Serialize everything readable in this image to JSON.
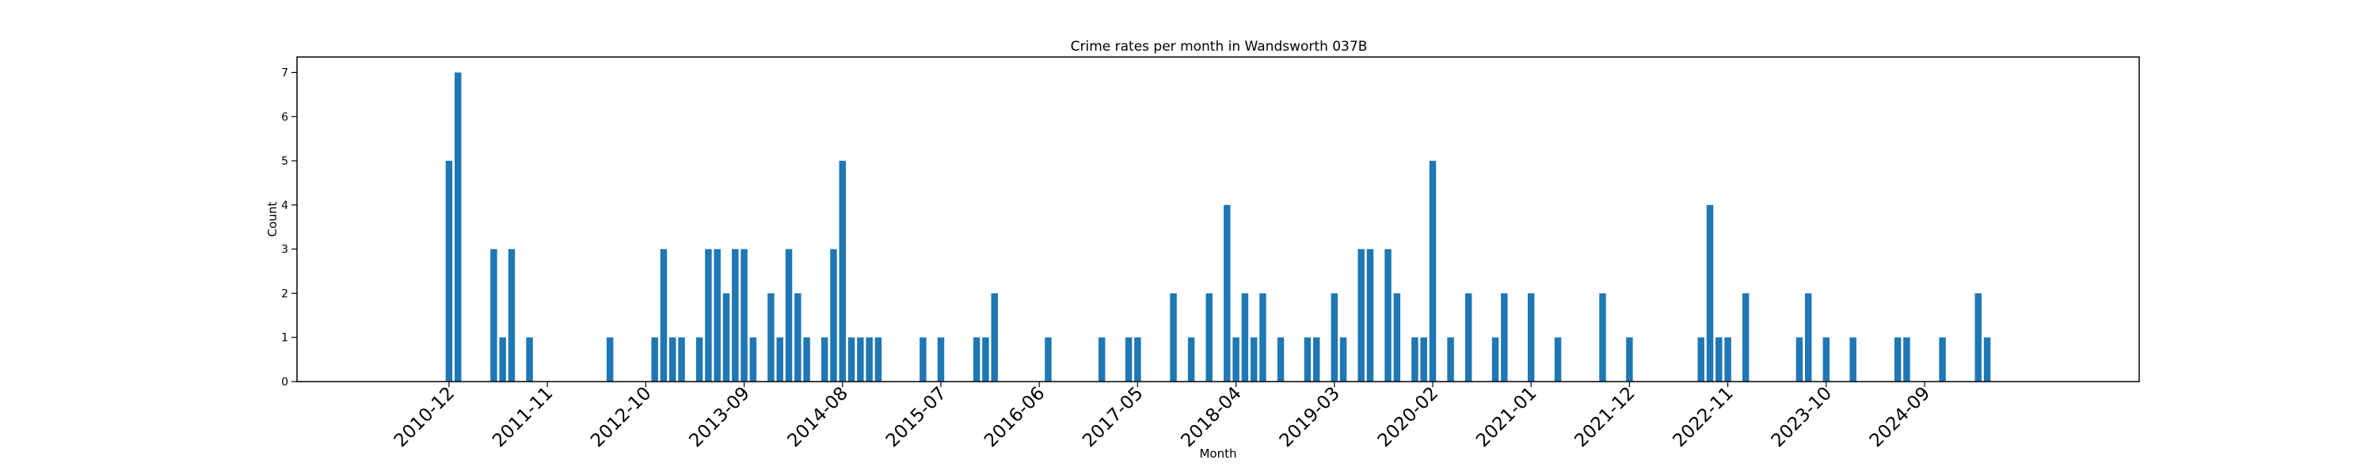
{
  "chart_data": {
    "type": "bar",
    "title": "Crime rates per month in Wandsworth 037B",
    "xlabel": "Month",
    "ylabel": "Count",
    "ylim": [
      0,
      7.35
    ],
    "yticks": [
      0,
      1,
      2,
      3,
      4,
      5,
      6,
      7
    ],
    "xlim": [
      "2009-07",
      "2026-09"
    ],
    "xticks": [
      "2010-12",
      "2011-11",
      "2012-10",
      "2013-09",
      "2014-08",
      "2015-07",
      "2016-06",
      "2017-05",
      "2018-04",
      "2019-03",
      "2020-02",
      "2021-01",
      "2021-12",
      "2022-11",
      "2023-10",
      "2024-09"
    ],
    "grid": false,
    "bar_color": "#1f77b4",
    "x": [
      "2010-12",
      "2011-01",
      "2011-05",
      "2011-06",
      "2011-07",
      "2011-09",
      "2012-06",
      "2012-11",
      "2012-12",
      "2013-01",
      "2013-02",
      "2013-04",
      "2013-05",
      "2013-06",
      "2013-07",
      "2013-08",
      "2013-09",
      "2013-10",
      "2013-12",
      "2014-01",
      "2014-02",
      "2014-03",
      "2014-04",
      "2014-06",
      "2014-07",
      "2014-08",
      "2014-09",
      "2014-10",
      "2014-11",
      "2014-12",
      "2015-05",
      "2015-07",
      "2015-11",
      "2015-12",
      "2016-01",
      "2016-07",
      "2017-01",
      "2017-04",
      "2017-05",
      "2017-09",
      "2017-11",
      "2018-01",
      "2018-03",
      "2018-04",
      "2018-05",
      "2018-06",
      "2018-07",
      "2018-09",
      "2018-12",
      "2019-01",
      "2019-03",
      "2019-04",
      "2019-06",
      "2019-07",
      "2019-09",
      "2019-10",
      "2019-12",
      "2020-01",
      "2020-02",
      "2020-04",
      "2020-06",
      "2020-09",
      "2020-10",
      "2021-01",
      "2021-04",
      "2021-09",
      "2021-12",
      "2022-08",
      "2022-09",
      "2022-10",
      "2022-11",
      "2023-01",
      "2023-07",
      "2023-08",
      "2023-10",
      "2024-01",
      "2024-06",
      "2024-07",
      "2024-11",
      "2025-03",
      "2025-04"
    ],
    "values": [
      5,
      7,
      3,
      1,
      3,
      1,
      1,
      1,
      3,
      1,
      1,
      1,
      3,
      3,
      2,
      3,
      3,
      1,
      2,
      1,
      3,
      2,
      1,
      1,
      3,
      5,
      1,
      1,
      1,
      1,
      1,
      1,
      1,
      1,
      2,
      1,
      1,
      1,
      1,
      2,
      1,
      2,
      4,
      1,
      2,
      1,
      2,
      1,
      1,
      1,
      2,
      1,
      3,
      3,
      3,
      2,
      1,
      1,
      5,
      1,
      2,
      1,
      2,
      2,
      1,
      2,
      1,
      1,
      4,
      1,
      1,
      2,
      1,
      2,
      1,
      1,
      1,
      1,
      1,
      2,
      1
    ]
  }
}
